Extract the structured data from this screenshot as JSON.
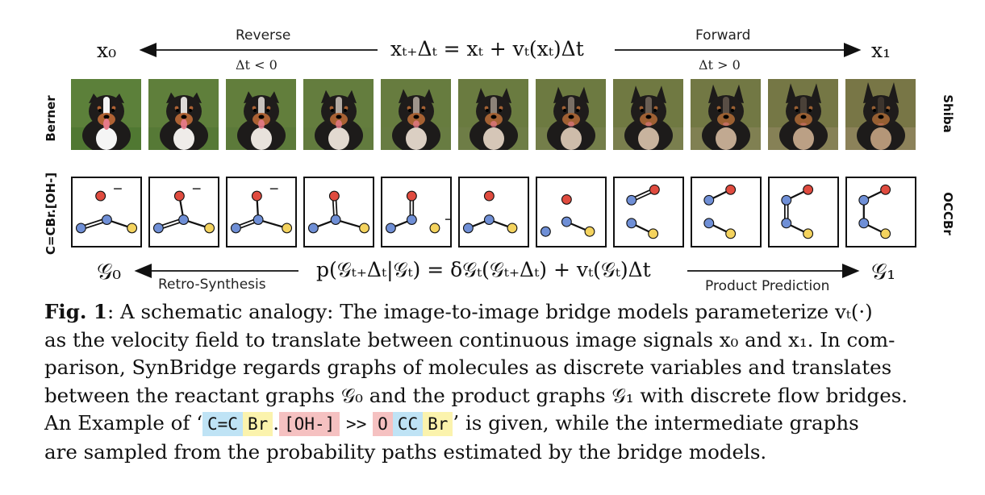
{
  "top": {
    "left_symbol": "x₀",
    "right_symbol": "x₁",
    "reverse_label": "Reverse",
    "reverse_cond": "Δt < 0",
    "forward_label": "Forward",
    "forward_cond": "Δt > 0",
    "equation": "xₜ₊Δₜ = xₜ + vₜ(xₜ)Δt"
  },
  "rows": {
    "dog_left_label": "Berner",
    "dog_right_label": "Shiba",
    "mol_left_label": "C=CBr.[OH-]",
    "mol_right_label": "OCCBr"
  },
  "bottom": {
    "left_symbol": "𝒢₀",
    "right_symbol": "𝒢₁",
    "retro_label": "Retro-Synthesis",
    "product_label": "Product Prediction",
    "equation": "p(𝒢ₜ₊Δₜ|𝒢ₜ) = δ𝒢ₜ(𝒢ₜ₊Δₜ) + vₜ(𝒢ₜ)Δt"
  },
  "caption": {
    "fig_label": "Fig. 1",
    "line1": ": A schematic analogy: The image-to-image bridge models parameterize vₜ(·)",
    "line2": "as the velocity field to translate between continuous image signals x₀ and x₁. In com-",
    "line3": "parison, SynBridge regards graphs of molecules as discrete variables and translates",
    "line4": "between the reactant graphs 𝒢₀ and the product graphs 𝒢₁ with discrete flow bridges.",
    "line5_prefix": "An Example of ‘",
    "tok1": "C=C",
    "tok2": "Br",
    "dot": ".",
    "tok3": "[OH-]",
    "arrow": ">>",
    "tok4": "O",
    "tok5": "CC",
    "tok6": "Br",
    "line5_suffix": "’ is given, while the intermediate graphs",
    "line6": "are sampled from the probability paths estimated by the bridge models."
  },
  "colors": {
    "atom_carbon": "#6f8fd6",
    "atom_oxygen": "#e04b3f",
    "atom_bromine": "#f4d35e",
    "token_blue": "#bfe3f5",
    "token_yellow": "#fbf3ad",
    "token_red": "#f5c1c1"
  }
}
